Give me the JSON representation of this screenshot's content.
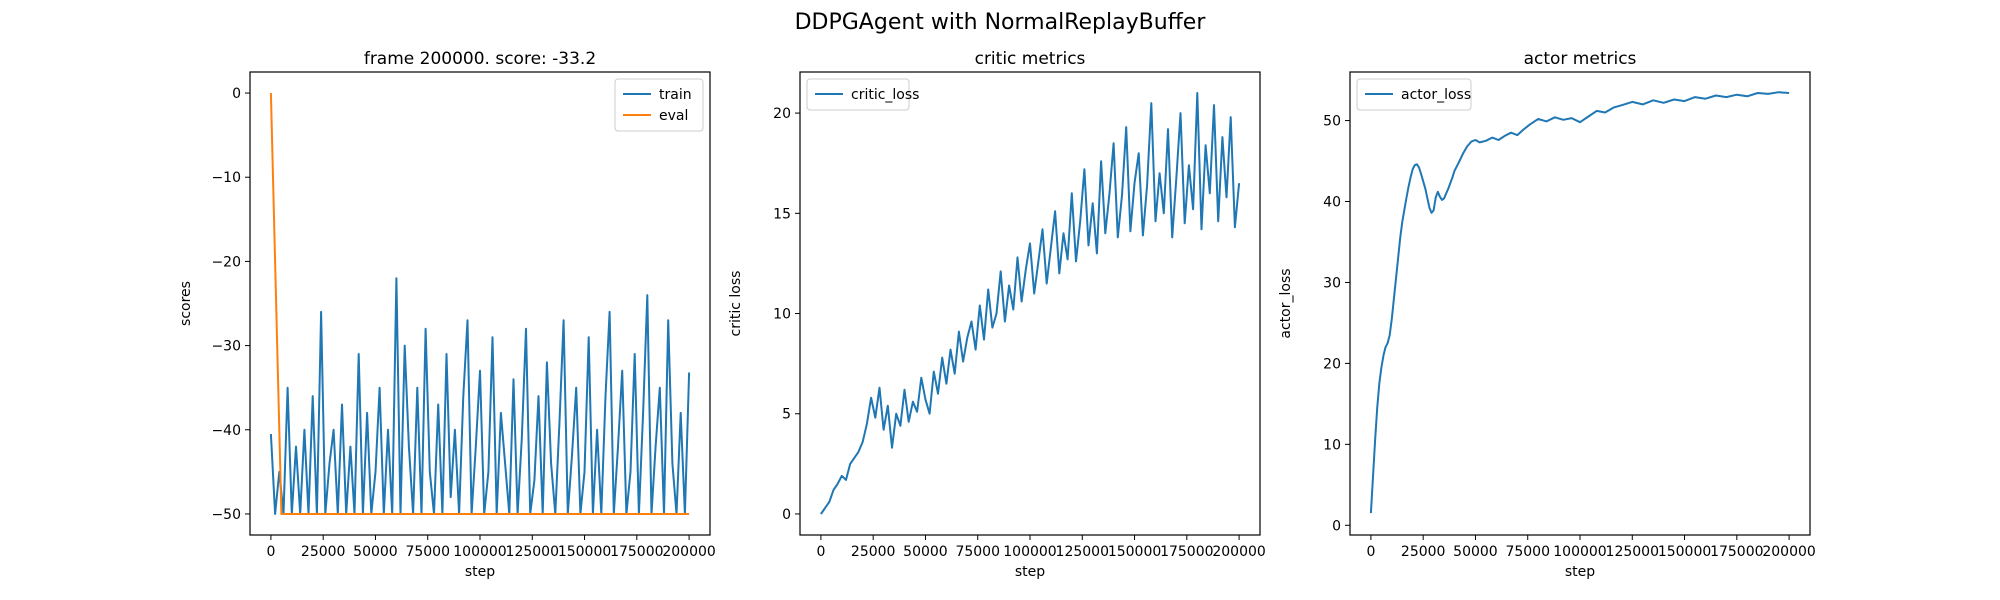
{
  "figure": {
    "suptitle": "DDPGAgent with NormalReplayBuffer"
  },
  "colors": {
    "train": "#1f77b4",
    "eval": "#ff7f0e",
    "critic_loss": "#1f77b4",
    "actor_loss": "#1f77b4",
    "axes": "#000000",
    "legend_border": "#cccccc"
  },
  "chart_data": [
    {
      "type": "line",
      "title": "frame 200000. score: -33.2",
      "xlabel": "step",
      "ylabel": "scores",
      "xlim": [
        -10000,
        210000
      ],
      "ylim": [
        -52.5,
        2.5
      ],
      "xticks": [
        0,
        25000,
        50000,
        75000,
        100000,
        125000,
        150000,
        175000,
        200000
      ],
      "xtick_labels": [
        "0",
        "25000",
        "50000",
        "75000",
        "100000",
        "125000",
        "150000",
        "175000",
        "200000"
      ],
      "yticks": [
        0,
        -10,
        -20,
        -30,
        -40,
        -50
      ],
      "ytick_labels": [
        "0",
        "−10",
        "−20",
        "−30",
        "−40",
        "−50"
      ],
      "legend_position": "upper right",
      "series": [
        {
          "name": "train",
          "color": "#1f77b4",
          "x": [
            0,
            2000,
            4000,
            6000,
            8000,
            10000,
            12000,
            14000,
            16000,
            18000,
            20000,
            22000,
            24000,
            26000,
            28000,
            30000,
            32000,
            34000,
            36000,
            38000,
            40000,
            42000,
            44000,
            46000,
            48000,
            50000,
            52000,
            54000,
            56000,
            58000,
            60000,
            62000,
            64000,
            66000,
            68000,
            70000,
            72000,
            74000,
            76000,
            78000,
            80000,
            82000,
            84000,
            86000,
            88000,
            90000,
            92000,
            94000,
            96000,
            98000,
            100000,
            102000,
            104000,
            106000,
            108000,
            110000,
            112000,
            114000,
            116000,
            118000,
            120000,
            122000,
            124000,
            126000,
            128000,
            130000,
            132000,
            134000,
            136000,
            138000,
            140000,
            142000,
            144000,
            146000,
            148000,
            150000,
            152000,
            154000,
            156000,
            158000,
            160000,
            162000,
            164000,
            166000,
            168000,
            170000,
            172000,
            174000,
            176000,
            178000,
            180000,
            182000,
            184000,
            186000,
            188000,
            190000,
            192000,
            194000,
            196000,
            198000,
            200000
          ],
          "y": [
            -40.5,
            -50,
            -45,
            -50,
            -35,
            -50,
            -42,
            -50,
            -40,
            -50,
            -36,
            -50,
            -26,
            -50,
            -44,
            -40,
            -50,
            -37,
            -50,
            -42,
            -50,
            -31,
            -50,
            -38,
            -50,
            -45,
            -35,
            -50,
            -40,
            -50,
            -22,
            -50,
            -30,
            -42,
            -50,
            -35,
            -50,
            -28,
            -45,
            -50,
            -37,
            -50,
            -31,
            -48,
            -40,
            -50,
            -36,
            -27,
            -50,
            -42,
            -33,
            -50,
            -45,
            -29,
            -50,
            -38,
            -44,
            -50,
            -34,
            -50,
            -41,
            -28,
            -50,
            -46,
            -36,
            -50,
            -32,
            -44,
            -50,
            -39,
            -27,
            -50,
            -43,
            -35,
            -50,
            -45,
            -29,
            -50,
            -40,
            -50,
            -36,
            -26,
            -50,
            -42,
            -33,
            -50,
            -45,
            -31,
            -50,
            -38,
            -24,
            -50,
            -42,
            -35,
            -50,
            -27,
            -44,
            -50,
            -38,
            -50,
            -33.2
          ]
        },
        {
          "name": "eval",
          "color": "#ff7f0e",
          "x": [
            0,
            5000,
            200000
          ],
          "y": [
            0,
            -50,
            -50
          ]
        }
      ]
    },
    {
      "type": "line",
      "title": "critic metrics",
      "xlabel": "step",
      "ylabel": "critic loss",
      "xlim": [
        -10000,
        210000
      ],
      "ylim": [
        -1.05,
        22.05
      ],
      "xticks": [
        0,
        25000,
        50000,
        75000,
        100000,
        125000,
        150000,
        175000,
        200000
      ],
      "xtick_labels": [
        "0",
        "25000",
        "50000",
        "75000",
        "100000",
        "125000",
        "150000",
        "175000",
        "200000"
      ],
      "yticks": [
        0,
        5,
        10,
        15,
        20
      ],
      "ytick_labels": [
        "0",
        "5",
        "10",
        "15",
        "20"
      ],
      "legend_position": "upper left",
      "series": [
        {
          "name": "critic_loss",
          "color": "#1f77b4",
          "x": [
            0,
            2000,
            4000,
            6000,
            8000,
            10000,
            12000,
            14000,
            16000,
            18000,
            20000,
            22000,
            24000,
            26000,
            28000,
            30000,
            32000,
            34000,
            36000,
            38000,
            40000,
            42000,
            44000,
            46000,
            48000,
            50000,
            52000,
            54000,
            56000,
            58000,
            60000,
            62000,
            64000,
            66000,
            68000,
            70000,
            72000,
            74000,
            76000,
            78000,
            80000,
            82000,
            84000,
            86000,
            88000,
            90000,
            92000,
            94000,
            96000,
            98000,
            100000,
            102000,
            104000,
            106000,
            108000,
            110000,
            112000,
            114000,
            116000,
            118000,
            120000,
            122000,
            124000,
            126000,
            128000,
            130000,
            132000,
            134000,
            136000,
            138000,
            140000,
            142000,
            144000,
            146000,
            148000,
            150000,
            152000,
            154000,
            156000,
            158000,
            160000,
            162000,
            164000,
            166000,
            168000,
            170000,
            172000,
            174000,
            176000,
            178000,
            180000,
            182000,
            184000,
            186000,
            188000,
            190000,
            192000,
            194000,
            196000,
            198000,
            200000
          ],
          "y": [
            0,
            0.3,
            0.6,
            1.2,
            1.5,
            1.9,
            1.7,
            2.5,
            2.8,
            3.1,
            3.6,
            4.5,
            5.8,
            4.8,
            6.3,
            4.2,
            5.4,
            3.3,
            5.0,
            4.4,
            6.2,
            4.6,
            5.6,
            5.1,
            6.8,
            5.7,
            5.0,
            7.1,
            6.0,
            7.8,
            6.5,
            8.2,
            7.0,
            9.1,
            7.6,
            8.8,
            9.6,
            8.2,
            10.4,
            8.7,
            11.2,
            9.3,
            10.0,
            12.1,
            9.6,
            11.4,
            10.2,
            12.8,
            10.6,
            12.2,
            13.5,
            11.0,
            12.6,
            14.2,
            11.5,
            13.3,
            15.1,
            12.0,
            14.0,
            12.7,
            16.0,
            12.6,
            14.6,
            17.2,
            13.4,
            15.5,
            13.0,
            17.6,
            14.0,
            16.0,
            18.5,
            13.8,
            15.9,
            19.3,
            14.1,
            16.5,
            18.0,
            13.9,
            16.4,
            20.5,
            14.6,
            17.0,
            15.0,
            19.2,
            13.8,
            16.8,
            20.0,
            14.5,
            17.4,
            15.2,
            21.0,
            14.2,
            18.4,
            16.0,
            20.4,
            14.6,
            18.8,
            15.8,
            19.8,
            14.3,
            16.5
          ]
        }
      ]
    },
    {
      "type": "line",
      "title": "actor metrics",
      "xlabel": "step",
      "ylabel": "actor_loss",
      "xlim": [
        -10000,
        210000
      ],
      "ylim": [
        -1.2,
        56.0
      ],
      "xticks": [
        0,
        25000,
        50000,
        75000,
        100000,
        125000,
        150000,
        175000,
        200000
      ],
      "xtick_labels": [
        "0",
        "25000",
        "50000",
        "75000",
        "100000",
        "125000",
        "150000",
        "175000",
        "200000"
      ],
      "yticks": [
        0,
        10,
        20,
        30,
        40,
        50
      ],
      "ytick_labels": [
        "0",
        "10",
        "20",
        "30",
        "40",
        "50"
      ],
      "legend_position": "upper left",
      "series": [
        {
          "name": "actor_loss",
          "color": "#1f77b4",
          "x": [
            0,
            1000,
            2000,
            3000,
            4000,
            5000,
            6000,
            7000,
            8000,
            9000,
            10000,
            11000,
            12000,
            13000,
            14000,
            15000,
            16000,
            17000,
            18000,
            19000,
            20000,
            21000,
            22000,
            23000,
            24000,
            25000,
            26000,
            27000,
            28000,
            29000,
            30000,
            31000,
            32000,
            33000,
            34000,
            35000,
            36000,
            37000,
            38000,
            39000,
            40000,
            42000,
            44000,
            46000,
            48000,
            50000,
            52000,
            55000,
            58000,
            61000,
            64000,
            67000,
            70000,
            73000,
            76000,
            80000,
            84000,
            88000,
            92000,
            96000,
            100000,
            104000,
            108000,
            112000,
            116000,
            120000,
            125000,
            130000,
            135000,
            140000,
            145000,
            150000,
            155000,
            160000,
            165000,
            170000,
            175000,
            180000,
            185000,
            190000,
            195000,
            200000
          ],
          "y": [
            1.5,
            6.0,
            10.5,
            14.5,
            17.5,
            19.5,
            21.0,
            22.0,
            22.5,
            23.5,
            25.5,
            28.0,
            30.5,
            33.0,
            35.5,
            37.5,
            39.0,
            40.5,
            41.8,
            43.0,
            44.0,
            44.5,
            44.6,
            44.2,
            43.4,
            42.5,
            41.6,
            40.4,
            39.2,
            38.6,
            38.9,
            40.5,
            41.2,
            40.6,
            40.2,
            40.4,
            41.0,
            41.6,
            42.3,
            43.0,
            43.8,
            44.8,
            45.9,
            46.8,
            47.4,
            47.6,
            47.3,
            47.5,
            47.9,
            47.6,
            48.1,
            48.5,
            48.2,
            48.9,
            49.5,
            50.2,
            49.9,
            50.4,
            50.1,
            50.3,
            49.8,
            50.5,
            51.2,
            51.0,
            51.6,
            51.9,
            52.3,
            52.0,
            52.5,
            52.2,
            52.6,
            52.4,
            52.9,
            52.7,
            53.1,
            52.9,
            53.2,
            53.0,
            53.4,
            53.3,
            53.5,
            53.4
          ]
        }
      ]
    }
  ]
}
